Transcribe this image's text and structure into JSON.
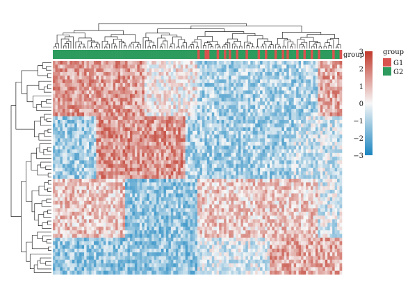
{
  "chart_data": {
    "type": "heatmap",
    "title": "",
    "xlabel": "",
    "ylabel": "",
    "n_rows": 58,
    "n_cols": 120,
    "color_scale": {
      "min": -3,
      "max": 3,
      "ticks": [
        "3",
        "2",
        "1",
        "0",
        "−1",
        "−2",
        "−3"
      ],
      "tick_values": [
        3,
        2,
        1,
        0,
        -1,
        -2,
        -3
      ],
      "colors": {
        "low": "#1a85c0",
        "mid": "#f7f7f7",
        "high": "#c0392b"
      }
    },
    "annotation": {
      "label": "group",
      "legend_title": "group",
      "categories": [
        {
          "name": "G1",
          "color": "#d9534f"
        },
        {
          "name": "G2",
          "color": "#2e9b5e"
        }
      ],
      "g1_columns": [
        60,
        63,
        64,
        68,
        71,
        73,
        76,
        80,
        85,
        88,
        92,
        95,
        97,
        101,
        104,
        107,
        110,
        116,
        119
      ]
    },
    "row_dendrogram": true,
    "column_dendrogram": true,
    "values_pattern": {
      "description_free": true,
      "row_blocks": [
        {
          "rows": [
            0,
            15
          ],
          "col_means": [
            [
              0,
              38,
              1.4
            ],
            [
              38,
              60,
              0.2
            ],
            [
              60,
              110,
              -1.0
            ],
            [
              110,
              120,
              1.2
            ]
          ]
        },
        {
          "rows": [
            15,
            32
          ],
          "col_means": [
            [
              0,
              18,
              -1.2
            ],
            [
              18,
              55,
              1.5
            ],
            [
              55,
              100,
              -1.1
            ],
            [
              100,
              120,
              -0.6
            ]
          ]
        },
        {
          "rows": [
            32,
            48
          ],
          "col_means": [
            [
              0,
              30,
              0.8
            ],
            [
              30,
              60,
              -1.3
            ],
            [
              60,
              110,
              0.7
            ],
            [
              110,
              120,
              -0.4
            ]
          ]
        },
        {
          "rows": [
            48,
            58
          ],
          "col_means": [
            [
              0,
              60,
              -1.3
            ],
            [
              60,
              90,
              -0.4
            ],
            [
              90,
              120,
              1.2
            ]
          ]
        }
      ]
    }
  }
}
